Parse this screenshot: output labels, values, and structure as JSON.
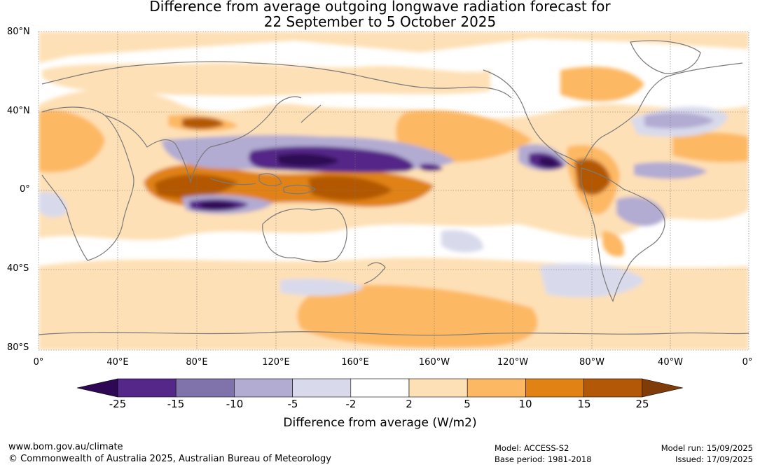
{
  "header": {
    "title_line1": "Difference from average outgoing longwave radiation forecast for",
    "title_line2": "22 September to 5 October 2025"
  },
  "map": {
    "lat_labels": [
      "80°N",
      "40°N",
      "0°",
      "40°S",
      "80°S"
    ],
    "lon_labels": [
      "0°",
      "40°E",
      "80°E",
      "120°E",
      "160°E",
      "160°W",
      "120°W",
      "80°W",
      "40°W",
      "0°"
    ]
  },
  "colorbar": {
    "ticks": [
      "-25",
      "-15",
      "-10",
      "-5",
      "-2",
      "2",
      "5",
      "10",
      "15",
      "25"
    ],
    "colors": [
      "#2e0854",
      "#542788",
      "#8073ac",
      "#b2abd2",
      "#d8daeb",
      "#ffffff",
      "#fee0b6",
      "#fdb863",
      "#e08214",
      "#b35806",
      "#7f3b08"
    ],
    "label": "Difference from average (W/m2)"
  },
  "footer": {
    "url": "www.bom.gov.au/climate",
    "copyright": "© Commonwealth of Australia 2025, Australian Bureau of Meteorology",
    "model": "Model: ACCESS-S2",
    "base_period": "Base period: 1981-2018",
    "model_run": "Model run: 15/09/2025",
    "issued": "Issued: 17/09/2025"
  }
}
